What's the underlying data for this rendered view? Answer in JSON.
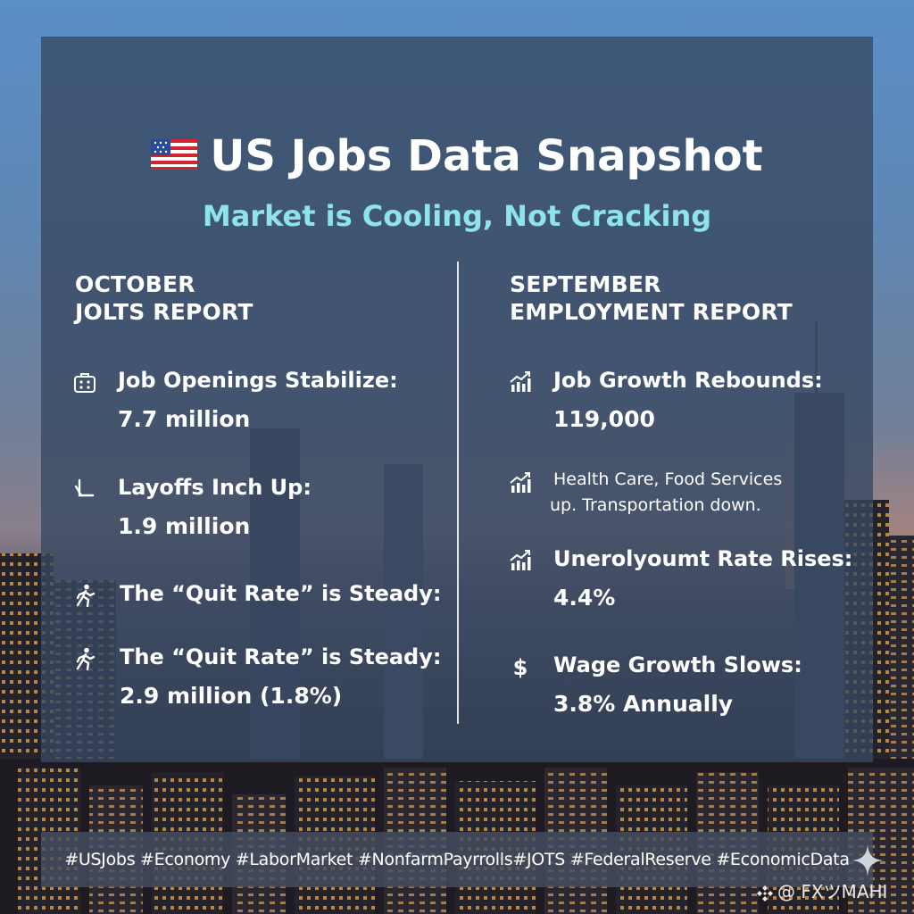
{
  "header": {
    "title": "US Jobs Data Snapshot",
    "subtitle": "Market is Cooling, Not Cracking"
  },
  "left_column": {
    "heading_line1": "OCTOBER",
    "heading_line2": "JOLTS REPORT",
    "items": [
      {
        "icon": "briefcase-icon",
        "label": "Job Openings Stabilize:",
        "value": "7.7 million"
      },
      {
        "icon": "arrow-down-turn-icon",
        "label": "Layoffs Inch Up:",
        "value": "1.9 million"
      },
      {
        "icon": "walking-person-icon",
        "label": "The “Quit Rate” is Steady:",
        "value": ""
      },
      {
        "icon": "walking-person-icon",
        "label": "The “Quit Rate” is Steady:",
        "value": "2.9 million (1.8%)"
      }
    ]
  },
  "right_column": {
    "heading_line1": "SEPTEMBER",
    "heading_line2": "EMPLOYMENT REPORT",
    "items": [
      {
        "icon": "growth-chart-icon",
        "label": "Job Growth Rebounds:",
        "value": "119,000"
      },
      {
        "icon": "growth-chart-icon",
        "note_line1": "Health Care, Food Services",
        "note_line2": "up. Transportation down."
      },
      {
        "icon": "growth-chart-icon",
        "label": "Unerolyoumt Rate Rises:",
        "value": "4.4%"
      },
      {
        "icon": "dollar-icon",
        "label": "Wage Growth Slows:",
        "value": "3.8% Annually"
      }
    ]
  },
  "footer": {
    "hashtags": "#USJobs #Economy #LaborMarket #NonfarmPayrrolls#JOTS #FederalReserve #EconomicData",
    "watermark": "@ FXツMAHI"
  },
  "colors": {
    "subtitle": "#8fe3ec",
    "panel": "#374862",
    "text": "#ffffff"
  }
}
